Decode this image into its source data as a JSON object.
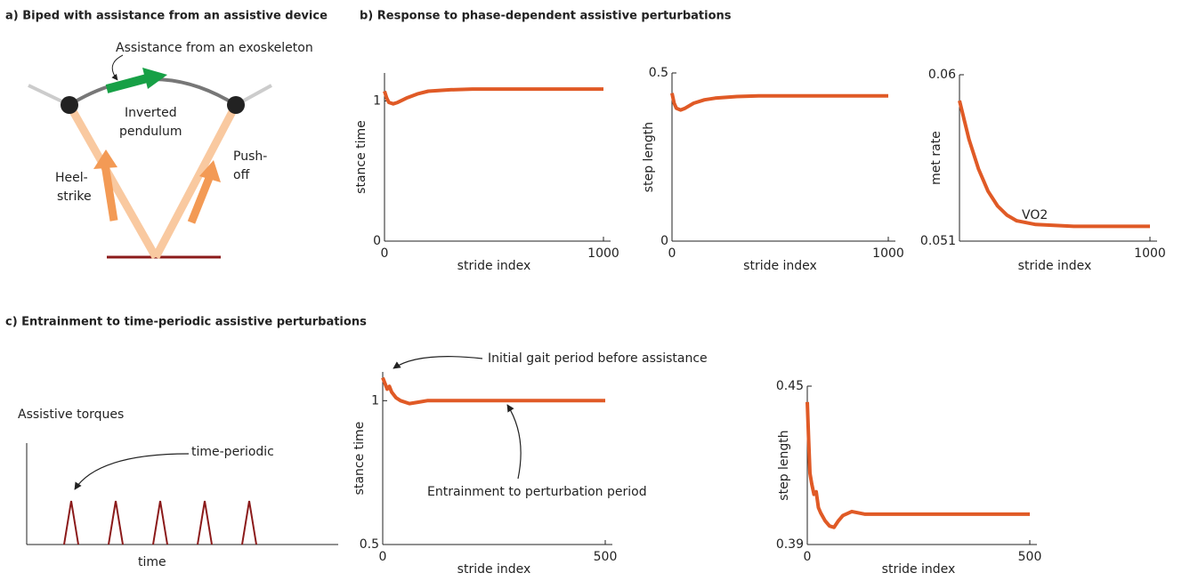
{
  "panel_a": {
    "title": "a) Biped with assistance from an assistive device",
    "assistance": "Assistance from an exoskeleton",
    "pendulum": [
      "Inverted",
      "pendulum"
    ],
    "heel_strike": [
      "Heel-",
      "strike"
    ],
    "push_off": [
      "Push-",
      "off"
    ]
  },
  "panel_b": {
    "title": "b) Response to phase-dependent assistive perturbations"
  },
  "panel_c": {
    "title": "c) Entrainment to time-periodic assistive perturbations",
    "torques_title": "Assistive torques",
    "torques_annotation": "time-periodic",
    "torques_x_label": "time"
  },
  "chart_data": [
    {
      "type": "line",
      "x_label": "stride index",
      "y_label": "stance time",
      "color": "#e05a26",
      "x": [
        0,
        10,
        20,
        40,
        60,
        100,
        150,
        200,
        300,
        400,
        600,
        800,
        1000
      ],
      "values": [
        1.07,
        1.02,
        0.99,
        0.98,
        0.99,
        1.02,
        1.05,
        1.07,
        1.08,
        1.085,
        1.085,
        1.085,
        1.085
      ],
      "xlim": [
        0,
        1000
      ],
      "xticks": [
        0,
        1000
      ],
      "ylim": [
        0,
        1.2
      ],
      "yticks": [
        0,
        1
      ]
    },
    {
      "type": "line",
      "x_label": "stride index",
      "y_label": "step length",
      "color": "#e05a26",
      "x": [
        0,
        10,
        20,
        40,
        60,
        100,
        150,
        200,
        300,
        400,
        600,
        800,
        1000
      ],
      "values": [
        0.44,
        0.41,
        0.395,
        0.39,
        0.395,
        0.41,
        0.42,
        0.425,
        0.43,
        0.432,
        0.432,
        0.432,
        0.432
      ],
      "xlim": [
        0,
        1000
      ],
      "xticks": [
        0,
        1000
      ],
      "ylim": [
        0,
        0.5
      ],
      "yticks": [
        0,
        0.5
      ]
    },
    {
      "type": "line",
      "x_label": "stride index",
      "y_label": "met rate",
      "color": "#e05a26",
      "annotations": [
        "VO2"
      ],
      "x": [
        0,
        50,
        100,
        150,
        200,
        250,
        300,
        400,
        600,
        800,
        1000
      ],
      "values": [
        0.0586,
        0.0565,
        0.0549,
        0.0537,
        0.0529,
        0.0524,
        0.0521,
        0.0519,
        0.0518,
        0.0518,
        0.0518
      ],
      "xlim": [
        0,
        1000
      ],
      "xticks": [
        1000
      ],
      "ylim": [
        0.051,
        0.06
      ],
      "yticks": [
        0.051,
        0.06
      ]
    },
    {
      "type": "line",
      "x_label": "stride index",
      "y_label": "stance time",
      "color": "#e05a26",
      "annotations": [
        "Initial gait period before assistance",
        "Entrainment to perturbation period"
      ],
      "x": [
        0,
        5,
        10,
        15,
        20,
        30,
        40,
        60,
        80,
        100,
        150,
        200,
        300,
        400,
        500
      ],
      "values": [
        1.08,
        1.06,
        1.04,
        1.05,
        1.03,
        1.01,
        1.0,
        0.99,
        0.995,
        1.0,
        1.0,
        1.0,
        1.0,
        1.0,
        1.0
      ],
      "xlim": [
        0,
        500
      ],
      "xticks": [
        0,
        500
      ],
      "ylim": [
        0.5,
        1.1
      ],
      "yticks": [
        0.5,
        1
      ]
    },
    {
      "type": "line",
      "x_label": "stride index",
      "y_label": "step length",
      "color": "#e05a26",
      "x": [
        0,
        3,
        6,
        10,
        15,
        20,
        25,
        30,
        40,
        50,
        60,
        70,
        80,
        100,
        130,
        200,
        300,
        400,
        500
      ],
      "values": [
        0.444,
        0.43,
        0.417,
        0.413,
        0.409,
        0.41,
        0.404,
        0.402,
        0.399,
        0.397,
        0.3965,
        0.399,
        0.401,
        0.4025,
        0.4015,
        0.4015,
        0.4015,
        0.4015,
        0.4015
      ],
      "xlim": [
        0,
        500
      ],
      "xticks": [
        0,
        500
      ],
      "ylim": [
        0.39,
        0.45
      ],
      "yticks": [
        0.39,
        0.45
      ]
    }
  ]
}
